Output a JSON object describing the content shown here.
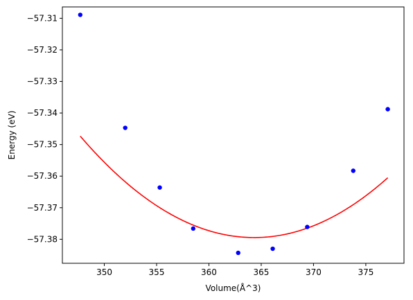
{
  "chart_data": {
    "type": "scatter",
    "title": "",
    "xlabel": "Volume(Å^3)",
    "ylabel": "Energy (eV)",
    "xlim": [
      345.99,
      378.65
    ],
    "ylim": [
      -57.3876,
      -57.3064
    ],
    "xticks": [
      350,
      355,
      360,
      365,
      370,
      375
    ],
    "xtick_labels": [
      "350",
      "355",
      "360",
      "365",
      "370",
      "375"
    ],
    "yticks": [
      -57.31,
      -57.32,
      -57.33,
      -57.34,
      -57.35,
      -57.36,
      -57.37,
      -57.38
    ],
    "ytick_labels": [
      "−57.31",
      "−57.32",
      "−57.33",
      "−57.34",
      "−57.35",
      "−57.36",
      "−57.37",
      "−57.38"
    ],
    "grid": false,
    "series": [
      {
        "kind": "points",
        "color": "#0000ff",
        "x": [
          347.7,
          352.0,
          355.3,
          358.5,
          362.8,
          366.1,
          369.4,
          373.8,
          377.1
        ],
        "y": [
          -57.3089,
          -57.3447,
          -57.3636,
          -57.3766,
          -57.3843,
          -57.383,
          -57.3761,
          -57.3583,
          -57.3388
        ]
      },
      {
        "kind": "fit-curve",
        "color": "#ff0000",
        "fit_type": "quadratic",
        "coefficients": [
          0.0001162,
          -0.08467,
          -41.9556
        ],
        "x_range": [
          347.7,
          377.1
        ]
      }
    ]
  }
}
